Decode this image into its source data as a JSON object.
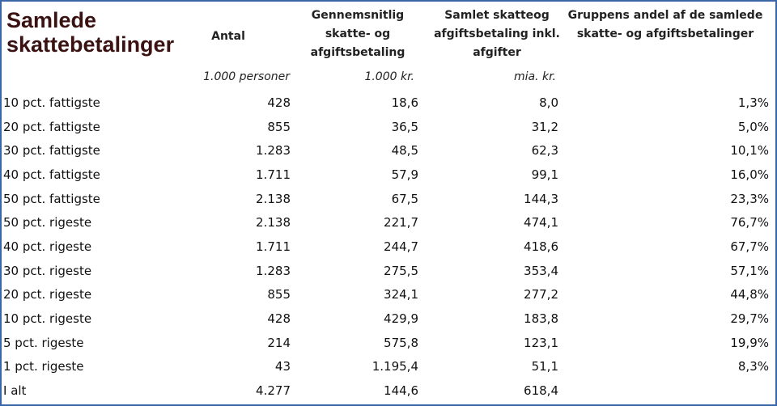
{
  "title": [
    "Samlede",
    "skattebetalinger"
  ],
  "headers": [
    [
      "Antal"
    ],
    [
      "Gennemsnitlig",
      "skatte- og",
      "afgiftsbetaling"
    ],
    [
      "Samlet skatteog",
      "afgiftsbetaling inkl.",
      "afgifter"
    ],
    [
      "Gruppens andel af de samlede",
      "skatte- og afgiftsbetalinger"
    ]
  ],
  "units": [
    "1.000 personer",
    "1.000 kr.",
    "mia. kr."
  ],
  "rows": [
    [
      "10 pct. fattigste",
      "428",
      "18,6",
      "8,0",
      "1,3%"
    ],
    [
      "20 pct. fattigste",
      "855",
      "36,5",
      "31,2",
      "5,0%"
    ],
    [
      "30 pct. fattigste",
      "1.283",
      "48,5",
      "62,3",
      "10,1%"
    ],
    [
      "40 pct. fattigste",
      "1.711",
      "57,9",
      "99,1",
      "16,0%"
    ],
    [
      "50 pct. fattigste",
      "2.138",
      "67,5",
      "144,3",
      "23,3%"
    ],
    [
      "50 pct. rigeste",
      "2.138",
      "221,7",
      "474,1",
      "76,7%"
    ],
    [
      "40 pct. rigeste",
      "1.711",
      "244,7",
      "418,6",
      "67,7%"
    ],
    [
      "30 pct. rigeste",
      "1.283",
      "275,5",
      "353,4",
      "57,1%"
    ],
    [
      "20 pct. rigeste",
      "855",
      "324,1",
      "277,2",
      "44,8%"
    ],
    [
      "10 pct. rigeste",
      "428",
      "429,9",
      "183,8",
      "29,7%"
    ],
    [
      "5 pct. rigeste",
      "214",
      "575,8",
      "123,1",
      "19,9%"
    ],
    [
      "1 pct. rigeste",
      "43",
      "1.195,4",
      "51,1",
      "8,3%"
    ],
    [
      "I alt",
      "4.277",
      "144,6",
      "618,4"
    ]
  ]
}
